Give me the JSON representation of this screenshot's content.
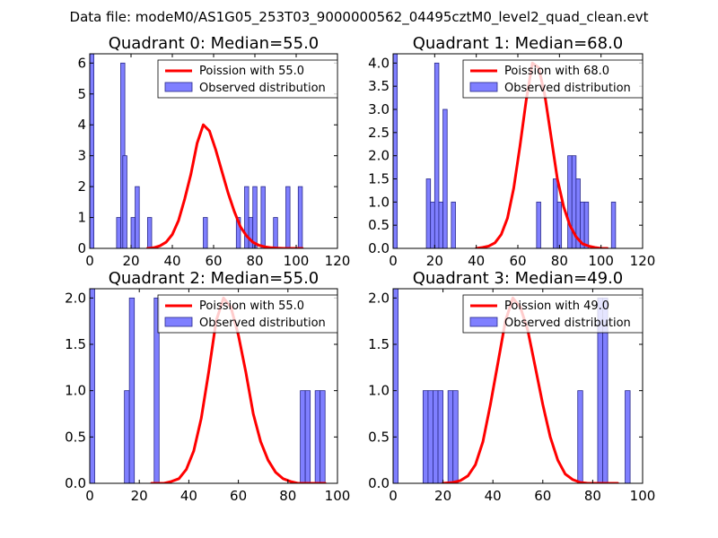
{
  "suptitle": "Data file: modeM0/AS1G05_253T03_9000000562_04495cztM0_level2_quad_clean.evt",
  "colors": {
    "observed_fill": "#7f7fff",
    "observed_edge": "#2a2a8a",
    "poisson_line": "#ff0000"
  },
  "chart_data": [
    {
      "type": "bar",
      "title": "Quadrant 0: Median=55.0",
      "xlim": [
        0,
        120
      ],
      "ylim": [
        0,
        6.3
      ],
      "xticks": [
        0,
        20,
        40,
        60,
        80,
        100,
        120
      ],
      "yticks": [
        0,
        1,
        2,
        3,
        4,
        5,
        6
      ],
      "ytick_labels": [
        "0",
        "1",
        "2",
        "3",
        "4",
        "5",
        "6"
      ],
      "bin_width": 2,
      "legend": {
        "line_label": "Poission with 55.0",
        "bar_label": "Observed distribution",
        "placement": "top-right"
      },
      "observed": {
        "x": [
          0,
          13,
          15,
          16,
          20,
          22,
          28,
          55,
          71,
          75,
          77,
          79,
          83,
          89,
          95,
          101
        ],
        "y": [
          6.3,
          1,
          6,
          3,
          1,
          2,
          1,
          1,
          1,
          2,
          1,
          2,
          2,
          1,
          2,
          2
        ]
      },
      "poisson": {
        "mean": 55.0,
        "peak": 4.0,
        "x": [
          28,
          31,
          34,
          37,
          40,
          43,
          46,
          49,
          52,
          55,
          58,
          61,
          64,
          67,
          70,
          73,
          76,
          79,
          82,
          85,
          88,
          91,
          94,
          97,
          100,
          103
        ],
        "y": [
          0.0,
          0.02,
          0.08,
          0.2,
          0.45,
          0.9,
          1.6,
          2.4,
          3.4,
          4.0,
          3.8,
          3.2,
          2.5,
          1.8,
          1.2,
          0.7,
          0.4,
          0.2,
          0.1,
          0.05,
          0.02,
          0.01,
          0.0,
          0.0,
          0.0,
          0.0
        ]
      }
    },
    {
      "type": "bar",
      "title": "Quadrant 1: Median=68.0",
      "xlim": [
        0,
        120
      ],
      "ylim": [
        0,
        4.2
      ],
      "xticks": [
        0,
        20,
        40,
        60,
        80,
        100,
        120
      ],
      "yticks": [
        0,
        0.5,
        1.0,
        1.5,
        2.0,
        2.5,
        3.0,
        3.5,
        4.0
      ],
      "ytick_labels": [
        "0.0",
        "0.5",
        "1.0",
        "1.5",
        "2.0",
        "2.5",
        "3.0",
        "3.5",
        "4.0"
      ],
      "bin_width": 2,
      "legend": {
        "line_label": "Poission with 68.0",
        "bar_label": "Observed distribution",
        "placement": "top-right"
      },
      "observed": {
        "x": [
          0,
          16,
          18,
          20,
          22,
          24,
          28,
          69,
          77,
          79,
          84,
          86,
          88,
          90,
          92,
          105
        ],
        "y": [
          4.2,
          1.5,
          1,
          4,
          1,
          3,
          1,
          1,
          1.5,
          1,
          2,
          2,
          1.5,
          1,
          1,
          1
        ]
      },
      "poisson": {
        "mean": 68.0,
        "peak": 4.0,
        "x": [
          40,
          43,
          46,
          49,
          52,
          55,
          58,
          61,
          64,
          67,
          70,
          73,
          76,
          79,
          82,
          85,
          88,
          91,
          94,
          97,
          100,
          103
        ],
        "y": [
          0.0,
          0.02,
          0.05,
          0.12,
          0.3,
          0.65,
          1.3,
          2.2,
          3.2,
          4.0,
          3.9,
          3.3,
          2.4,
          1.5,
          0.9,
          0.5,
          0.25,
          0.1,
          0.05,
          0.02,
          0.0,
          0.0
        ]
      }
    },
    {
      "type": "bar",
      "title": "Quadrant 2: Median=55.0",
      "xlim": [
        0,
        100
      ],
      "ylim": [
        0,
        2.1
      ],
      "xticks": [
        0,
        20,
        40,
        60,
        80,
        100
      ],
      "yticks": [
        0,
        0.5,
        1.0,
        1.5,
        2.0
      ],
      "ytick_labels": [
        "0.0",
        "0.5",
        "1.0",
        "1.5",
        "2.0"
      ],
      "bin_width": 2,
      "legend": {
        "line_label": "Poission with 55.0",
        "bar_label": "Observed distribution",
        "placement": "top-right"
      },
      "observed": {
        "x": [
          0,
          14,
          16,
          26,
          85,
          87,
          91,
          93
        ],
        "y": [
          2.1,
          1,
          2,
          2,
          1,
          1,
          1,
          1
        ]
      },
      "poisson": {
        "mean": 55.0,
        "peak": 2.0,
        "x": [
          25,
          30,
          33,
          36,
          39,
          42,
          45,
          48,
          51,
          54,
          57,
          60,
          63,
          66,
          69,
          72,
          75,
          78,
          81,
          84,
          87,
          90,
          93,
          95
        ],
        "y": [
          0.0,
          0.0,
          0.02,
          0.05,
          0.15,
          0.35,
          0.7,
          1.2,
          1.75,
          2.0,
          1.9,
          1.6,
          1.2,
          0.75,
          0.45,
          0.25,
          0.12,
          0.05,
          0.02,
          0.0,
          0.0,
          0.0,
          0.0,
          0.0
        ]
      }
    },
    {
      "type": "bar",
      "title": "Quadrant 3: Median=49.0",
      "xlim": [
        0,
        100
      ],
      "ylim": [
        0,
        2.1
      ],
      "xticks": [
        0,
        20,
        40,
        60,
        80,
        100
      ],
      "yticks": [
        0,
        0.5,
        1.0,
        1.5,
        2.0
      ],
      "ytick_labels": [
        "0.0",
        "0.5",
        "1.0",
        "1.5",
        "2.0"
      ],
      "bin_width": 2,
      "legend": {
        "line_label": "Poission with 49.0",
        "bar_label": "Observed distribution",
        "placement": "top-right"
      },
      "observed": {
        "x": [
          0,
          12,
          14,
          16,
          18,
          22,
          24,
          74,
          82,
          84,
          93
        ],
        "y": [
          2.1,
          1,
          1,
          1,
          1,
          1,
          1,
          1,
          2,
          2,
          1
        ]
      },
      "poisson": {
        "mean": 49.0,
        "peak": 2.0,
        "x": [
          20,
          24,
          27,
          30,
          33,
          36,
          39,
          42,
          45,
          48,
          51,
          54,
          57,
          60,
          63,
          66,
          69,
          72,
          75,
          78,
          81,
          84,
          87,
          90
        ],
        "y": [
          0.0,
          0.01,
          0.03,
          0.08,
          0.2,
          0.45,
          0.85,
          1.3,
          1.75,
          2.0,
          1.9,
          1.65,
          1.25,
          0.85,
          0.5,
          0.25,
          0.1,
          0.04,
          0.01,
          0.0,
          0.0,
          0.0,
          0.0,
          0.0
        ]
      }
    }
  ]
}
